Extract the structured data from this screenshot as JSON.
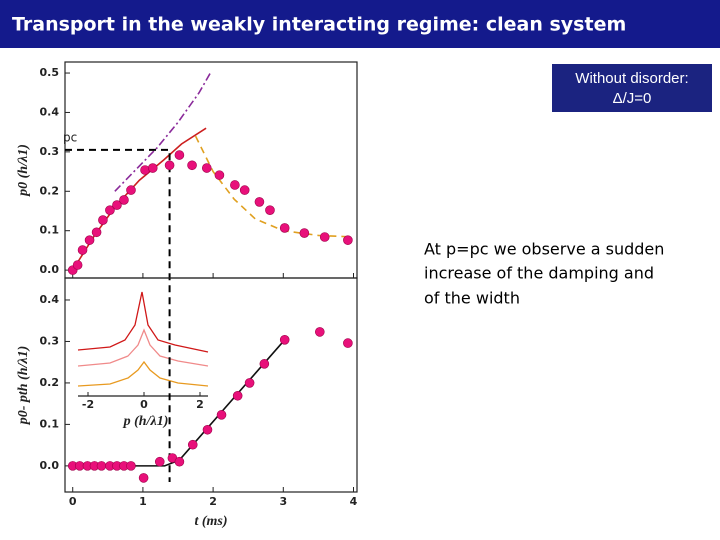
{
  "header": {
    "title": "Transport in the weakly interacting regime: clean system"
  },
  "box": {
    "lines": [
      "Without disorder:",
      "Δ/J=0"
    ]
  },
  "note": {
    "lines": [
      "At p=pc we observe a sudden",
      "increase of the damping and",
      "of the width"
    ]
  },
  "chart_data": [
    {
      "type": "scatter",
      "ylabel": "p0 (h/λ1)",
      "color": "#e8107a",
      "x": [
        0.0,
        0.07,
        0.14,
        0.24,
        0.34,
        0.43,
        0.53,
        0.63,
        0.73,
        0.83,
        1.03,
        1.14,
        1.38,
        1.52,
        1.7,
        1.91,
        2.09,
        2.31,
        2.45,
        2.66,
        2.81,
        3.02,
        3.3,
        3.59,
        3.92
      ],
      "values": [
        0.0,
        0.013,
        0.051,
        0.076,
        0.096,
        0.127,
        0.152,
        0.165,
        0.178,
        0.203,
        0.254,
        0.259,
        0.266,
        0.292,
        0.266,
        0.259,
        0.241,
        0.216,
        0.203,
        0.173,
        0.152,
        0.107,
        0.094,
        0.084,
        0.076
      ],
      "xlim": [
        -0.11,
        4.05
      ],
      "ylim": [
        -0.02,
        0.528
      ],
      "yticks": [
        {
          "value": 0,
          "label": "0.0"
        },
        0.1,
        0.2,
        0.3,
        0.4,
        0.5
      ],
      "lines": [
        {
          "color": "#cc1f1f",
          "dash": "none",
          "x": [
            0,
            0.3,
            0.6,
            0.95,
            1.3,
            1.55,
            1.9
          ],
          "values": [
            0,
            0.085,
            0.16,
            0.228,
            0.28,
            0.32,
            0.36
          ]
        },
        {
          "color": "#8a2a9a",
          "dash": "8 3 2 3",
          "x": [
            0.6,
            0.9,
            1.2,
            1.5,
            1.8,
            1.96
          ],
          "values": [
            0.2,
            0.255,
            0.31,
            0.375,
            0.45,
            0.5
          ]
        },
        {
          "color": "#e0a020",
          "dash": "7 5",
          "x": [
            1.75,
            2.0,
            2.3,
            2.6,
            3.0,
            3.5,
            3.9
          ],
          "values": [
            0.34,
            0.25,
            0.18,
            0.13,
            0.1,
            0.088,
            0.085
          ]
        }
      ],
      "annotation": "pc",
      "pc": 0.305,
      "tc": 1.38
    },
    {
      "type": "scatter",
      "ylabel": "p0- pth (h/λ1)",
      "xlabel": "t (ms)",
      "color": "#e8107a",
      "x": [
        0.0,
        0.1,
        0.21,
        0.31,
        0.41,
        0.53,
        0.63,
        0.73,
        0.83,
        1.01,
        1.24,
        1.42,
        1.52,
        1.71,
        1.92,
        2.12,
        2.35,
        2.52,
        2.73,
        3.02,
        3.52,
        3.92
      ],
      "values": [
        0.0,
        0.0,
        0.0,
        0.0,
        0.0,
        0.0,
        0.0,
        0.0,
        0.0,
        -0.029,
        0.01,
        0.019,
        0.01,
        0.051,
        0.087,
        0.123,
        0.169,
        0.2,
        0.246,
        0.304,
        0.323,
        0.296
      ],
      "xlim": [
        -0.11,
        4.05
      ],
      "ylim": [
        -0.063,
        0.453
      ],
      "xticks": [
        0,
        1,
        2,
        3,
        4
      ],
      "yticks": [
        {
          "value": 0,
          "label": "0.0"
        },
        0.1,
        0.2,
        0.3,
        0.4
      ],
      "lines": [
        {
          "color": "#111111",
          "dash": "none",
          "x": [
            0,
            1.31,
            1.52,
            3.02
          ],
          "values": [
            0,
            0,
            0.014,
            0.304
          ]
        }
      ],
      "inset": {
        "xticks": [
          -2,
          0,
          2
        ],
        "xlabel": "p (h/λ1)"
      }
    }
  ]
}
